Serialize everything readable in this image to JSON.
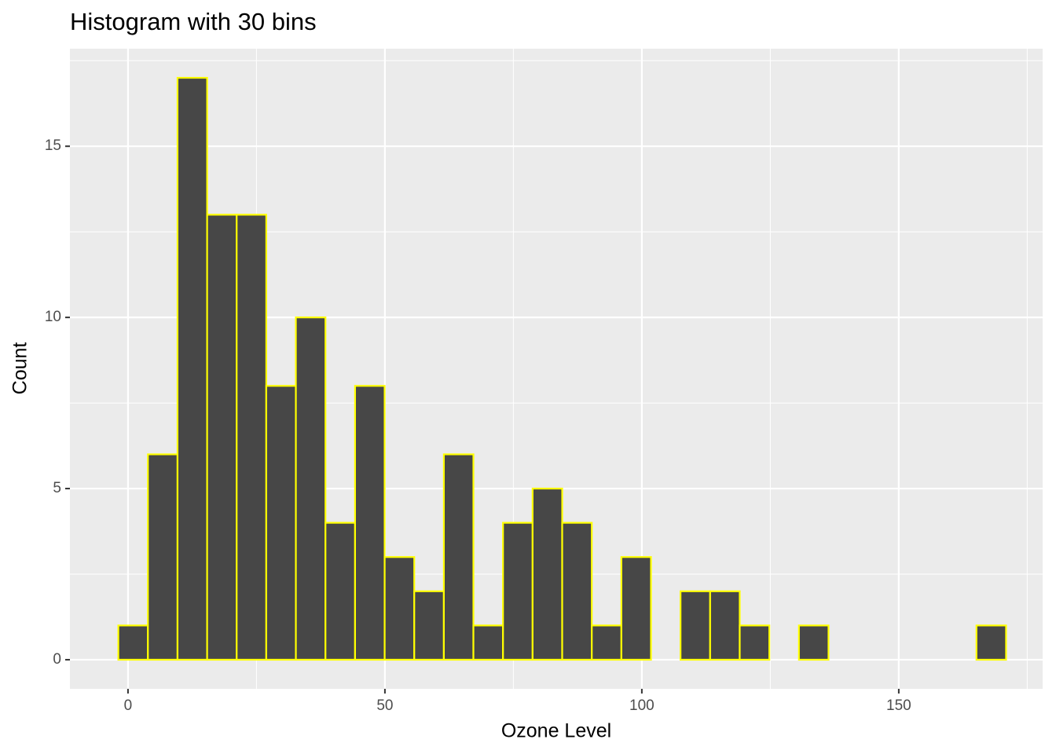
{
  "chart_data": {
    "type": "histogram",
    "title": "Histogram with 30 bins",
    "x_label": "Ozone Level",
    "y_label": "Count",
    "bins": [
      -1.88,
      3.88,
      9.64,
      15.4,
      21.15,
      26.91,
      32.67,
      38.43,
      44.19,
      49.95,
      55.71,
      61.47,
      67.22,
      72.98,
      78.74,
      84.5,
      90.26,
      96.02,
      101.78,
      107.53,
      113.29,
      119.05,
      124.81,
      130.57,
      136.33,
      142.09,
      147.84,
      153.6,
      159.36,
      165.12,
      170.88
    ],
    "counts": [
      1,
      6,
      17,
      13,
      13,
      8,
      10,
      4,
      8,
      3,
      2,
      6,
      1,
      4,
      5,
      4,
      1,
      3,
      0,
      2,
      2,
      1,
      0,
      1,
      0,
      0,
      0,
      0,
      0,
      1
    ],
    "color": "#474747",
    "edge_color": "#ffff00",
    "xlim": [
      -11.3,
      178
    ],
    "ylim": [
      -0.85,
      17.85
    ],
    "xticks": [
      0,
      50,
      100,
      150
    ],
    "yticks": [
      0,
      5,
      10,
      15
    ],
    "grid": true,
    "minor_grid": true
  }
}
